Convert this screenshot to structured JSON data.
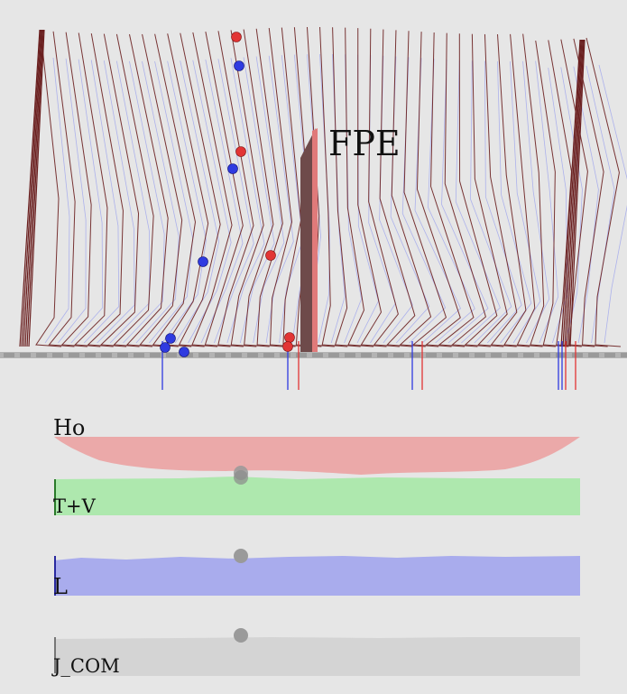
{
  "annotation": {
    "label": "FPE"
  },
  "plots": [
    {
      "key": "ho",
      "label": "Ho",
      "color": "#eba9a9"
    },
    {
      "key": "tv",
      "label": "T+V",
      "color": "#aee8ae"
    },
    {
      "key": "l",
      "label": "L",
      "color": "#a9aced"
    },
    {
      "key": "jcom",
      "label": "J_COM",
      "color": "#d4d4d4"
    }
  ],
  "colors": {
    "background": "#e6e6e6",
    "stick_dark": "#6a1f1f",
    "stick_light": "#9aa0ee",
    "red_marker": "#e23535",
    "blue_marker": "#2f3be0",
    "ground": "#b3b3b3",
    "gray_marker": "#9a9a9a"
  }
}
